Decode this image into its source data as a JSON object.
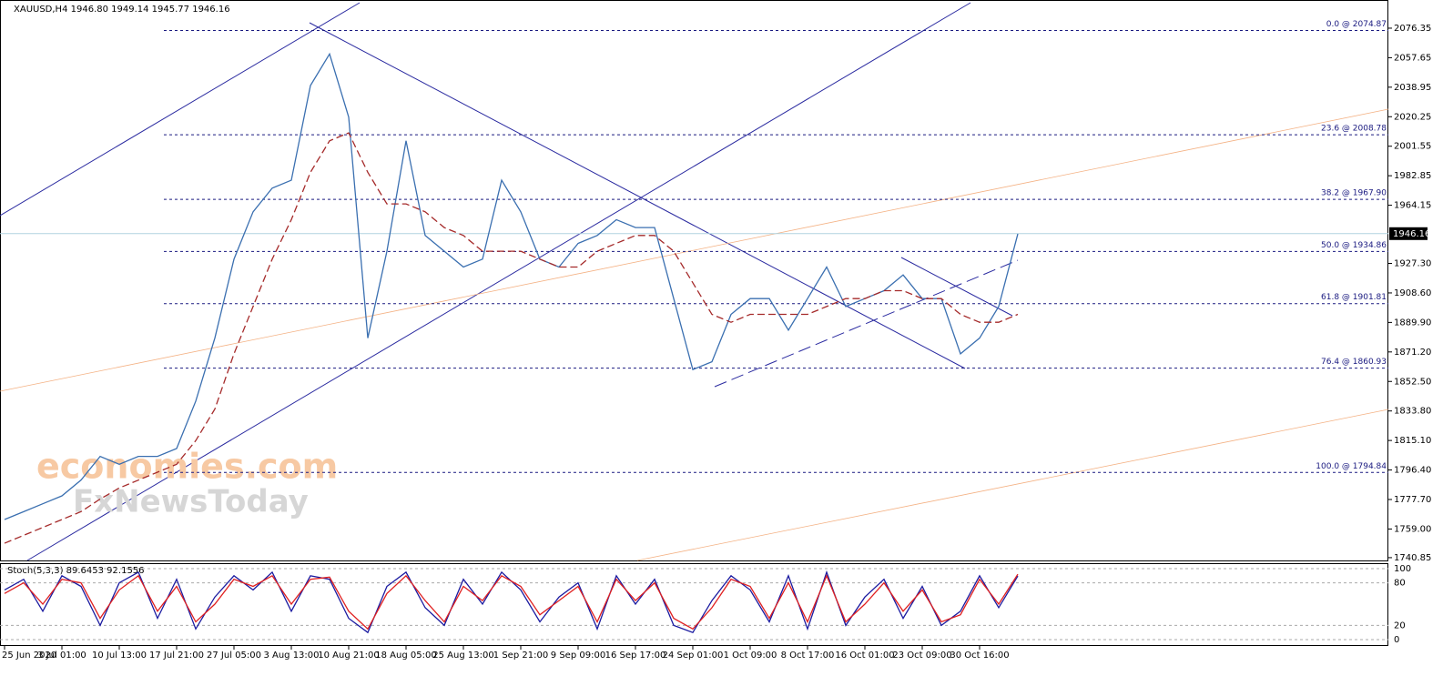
{
  "chart_data": [
    {
      "type": "line",
      "title": "XAUUSD,H4  1946.80 1949.14 1945.77 1946.16",
      "watermark": [
        "economies.com",
        "FxNewsToday"
      ],
      "ylim": [
        1738.5,
        2094.2
      ],
      "yticks": [
        2076.35,
        2057.65,
        2038.95,
        2020.25,
        2001.55,
        1982.85,
        1964.15,
        {
          "value": 1927.3,
          "label": "1927.30"
        },
        {
          "value": 1908.6,
          "label": "1908.60"
        },
        {
          "value": 1889.9,
          "label": "1889.90"
        },
        {
          "value": 1871.2,
          "label": "1871.20"
        },
        {
          "value": 1852.5,
          "label": "1852.50"
        },
        {
          "value": 1833.8,
          "label": "1833.80"
        },
        {
          "value": 1815.1,
          "label": "1815.10"
        },
        {
          "value": 1796.4,
          "label": "1796.40"
        },
        {
          "value": 1777.7,
          "label": "1777.70"
        },
        {
          "value": 1759,
          "label": "1759.00"
        },
        1740.85
      ],
      "current_price": 1946.16,
      "levels": [
        {
          "value": 2074.87,
          "label": "0.0 @ 2074.87"
        },
        {
          "value": 2008.78,
          "label": "23.6 @ 2008.78"
        },
        {
          "value": 1967.9,
          "label": "38.2 @ 1967.90"
        },
        {
          "value": 1934.86,
          "label": "50.0 @ 1934.86"
        },
        {
          "value": 1901.81,
          "label": "61.8 @ 1901.81"
        },
        {
          "value": 1860.93,
          "label": "76.4 @ 1860.93"
        },
        {
          "value": 1794.84,
          "label": "100.0 @ 1794.84"
        }
      ],
      "series": [
        {
          "name": "XAUUSD",
          "color": "#3a6fb0",
          "values": [
            1765,
            1770,
            1775,
            1780,
            1790,
            1805,
            1800,
            1805,
            1805,
            1810,
            1840,
            1880,
            1930,
            1960,
            1975,
            1980,
            2040,
            2060,
            2020,
            1880,
            1935,
            2005,
            1945,
            1935,
            1925,
            1930,
            1980,
            1960,
            1930,
            1925,
            1940,
            1945,
            1955,
            1950,
            1950,
            1905,
            1860,
            1865,
            1895,
            1905,
            1905,
            1885,
            1905,
            1925,
            1900,
            1905,
            1910,
            1920,
            1905,
            1905,
            1870,
            1880,
            1900,
            1946
          ]
        },
        {
          "name": "MA",
          "color": "#a52a2a",
          "values": [
            1750,
            1755,
            1760,
            1765,
            1770,
            1778,
            1785,
            1790,
            1795,
            1800,
            1815,
            1835,
            1870,
            1900,
            1930,
            1955,
            1985,
            2005,
            2010,
            1985,
            1965,
            1965,
            1960,
            1950,
            1945,
            1935,
            1935,
            1935,
            1930,
            1925,
            1925,
            1935,
            1940,
            1945,
            1945,
            1935,
            1915,
            1895,
            1890,
            1895,
            1895,
            1895,
            1895,
            1900,
            1905,
            1905,
            1910,
            1910,
            1905,
            1905,
            1895,
            1890,
            1890,
            1895
          ]
        }
      ]
    },
    {
      "type": "line",
      "title": "Stoch(5,3,3) 89.6453 92.1556",
      "categories": [
        "25 Jun 2020",
        null,
        null,
        "3 Jul 01:00",
        null,
        null,
        "10 Jul 13:00",
        null,
        null,
        "17 Jul 21:00",
        null,
        null,
        "27 Jul 05:00",
        null,
        null,
        "3 Aug 13:00",
        null,
        null,
        "10 Aug 21:00",
        null,
        null,
        "18 Aug 05:00",
        null,
        null,
        "25 Aug 13:00",
        null,
        null,
        "1 Sep 21:00",
        null,
        null,
        "9 Sep 09:00",
        null,
        null,
        "16 Sep 17:00",
        null,
        null,
        "24 Sep 01:00",
        null,
        null,
        "1 Oct 09:00",
        null,
        null,
        "8 Oct 17:00",
        null,
        null,
        "16 Oct 01:00",
        null,
        null,
        "23 Oct 09:00",
        null,
        null,
        "30 Oct 16:00",
        null,
        null
      ],
      "ylim": [
        0,
        100
      ],
      "yticks": [
        0,
        20,
        80,
        100
      ],
      "series": [
        {
          "name": "Main",
          "color": "#1a1aa0",
          "values": [
            70,
            85,
            40,
            90,
            75,
            20,
            80,
            95,
            30,
            85,
            15,
            60,
            90,
            70,
            95,
            40,
            90,
            85,
            30,
            10,
            75,
            95,
            45,
            20,
            85,
            50,
            95,
            70,
            25,
            60,
            80,
            15,
            90,
            50,
            85,
            20,
            10,
            55,
            90,
            70,
            25,
            90,
            15,
            95,
            20,
            60,
            85,
            30,
            75,
            20,
            40,
            90,
            45,
            89.6453
          ]
        },
        {
          "name": "Signal",
          "color": "#e02020",
          "values": [
            65,
            80,
            50,
            85,
            80,
            30,
            70,
            90,
            40,
            75,
            25,
            50,
            85,
            75,
            90,
            50,
            85,
            88,
            40,
            15,
            65,
            90,
            55,
            25,
            75,
            55,
            90,
            75,
            35,
            55,
            75,
            25,
            85,
            55,
            80,
            30,
            15,
            45,
            85,
            75,
            30,
            80,
            25,
            90,
            25,
            50,
            80,
            40,
            70,
            25,
            35,
            85,
            50,
            92.1556
          ]
        }
      ]
    }
  ]
}
